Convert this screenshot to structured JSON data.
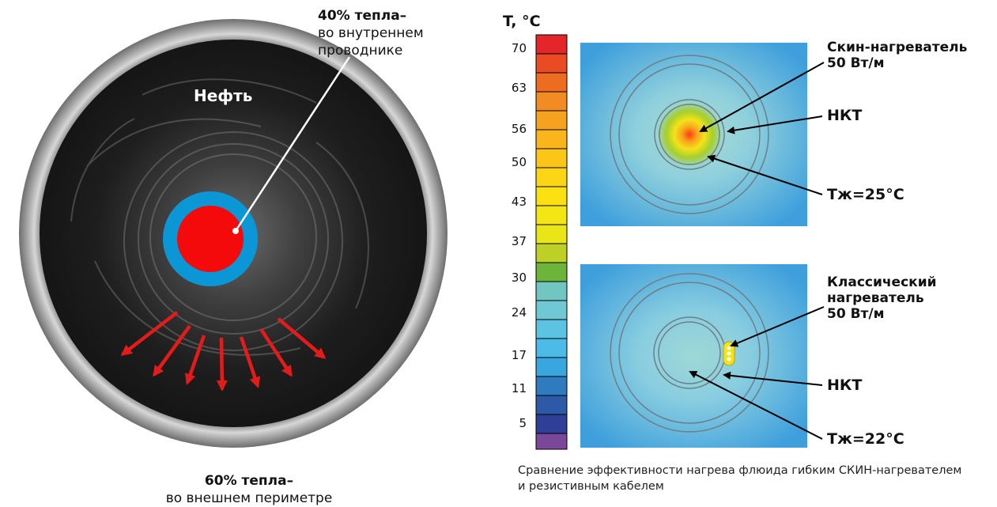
{
  "left_diagram": {
    "oil_label": "Нефть",
    "inner_heat": {
      "bold": "40% тепла–",
      "rest": "во внутреннем проводнике"
    },
    "outer_heat": {
      "bold": "60% тепла–",
      "rest": "во внешнем периметре"
    }
  },
  "scale": {
    "unit": "T, °C",
    "ticks": [
      "70",
      "63",
      "56",
      "50",
      "43",
      "37",
      "30",
      "24",
      "17",
      "11",
      "5"
    ]
  },
  "top_panel": {
    "heater": "Скин-нагреватель",
    "heater_power": "50 Вт/м",
    "tubing": "НКТ",
    "fluid_temp": "Тж=25°C"
  },
  "bottom_panel": {
    "heater_line1": "Классический",
    "heater_line2": "нагреватель",
    "heater_power": "50 Вт/м",
    "tubing": "НКТ",
    "fluid_temp": "Тж=22°C"
  },
  "caption": {
    "line1": "Сравнение эффективности нагрева флюида гибким СКИН-нагревателем",
    "line2": "и резистивным кабелем"
  },
  "colors": {
    "core_red": "#f40a0a",
    "insulation_blue": "#0b97d6",
    "arrow_red": "#e41b1b",
    "field_blue": "#3ea0dd"
  }
}
